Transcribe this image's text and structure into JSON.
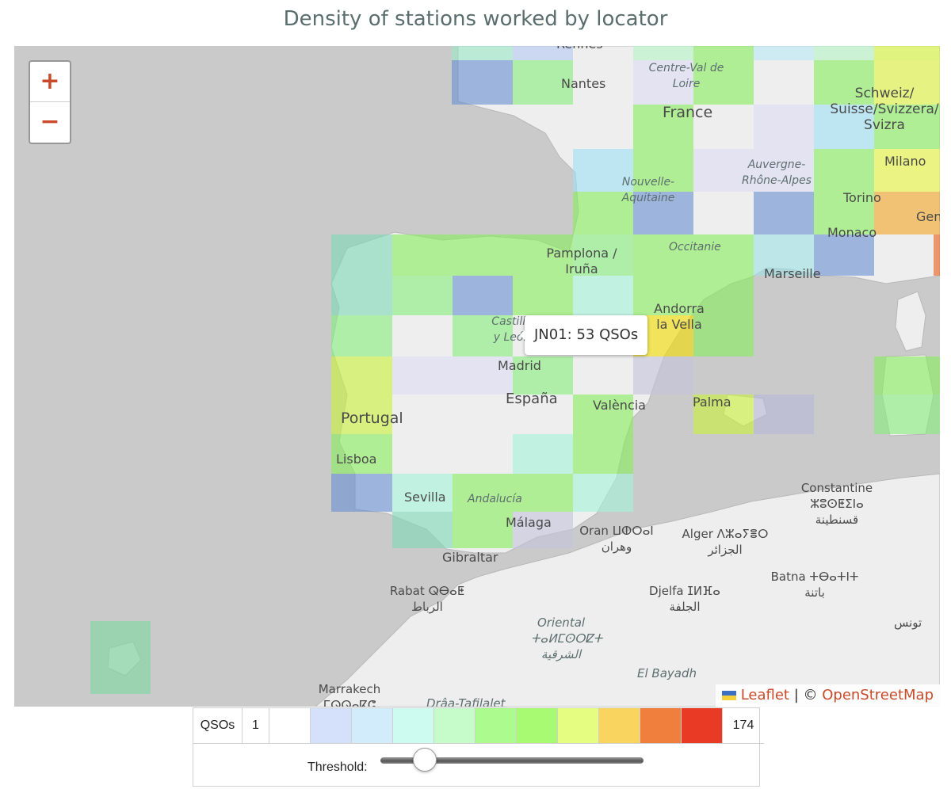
{
  "title": "Density of stations worked by locator",
  "zoom": {
    "in": "+",
    "out": "−"
  },
  "tooltip": "JN01: 53 QSOs",
  "map_labels": [
    "Rennes",
    "Nantes",
    "Centre-Val de Loire",
    "France",
    "Schweiz/ Suisse/Svizzera/ Svizra",
    "Milano",
    "Nouvelle-Aquitaine",
    "Auvergne-Rhône-Alpes",
    "Torino",
    "Genova",
    "Monaco",
    "Pamplona / Iruña",
    "Occitanie",
    "Marseille",
    "Andorra la Vella",
    "Castilla y León",
    "Madrid",
    "España",
    "València",
    "Palma",
    "Portugal",
    "Lisboa",
    "Sevilla",
    "Andalucía",
    "Málaga",
    "Gibraltar",
    "Constantine ⵣⵓⵙⵟⵉⵏⴰ قسنطينة",
    "Oran ⵡⵀⵔⴰⵏ وهران",
    "Alger ⴷⵣⴰⵢⴻⵔ الجزائر",
    "Batna ⵜⴱⴰⵜⵏⵜ باتنة",
    "Rabat ⵕⴱⴰⵟ الرباط",
    "Djelfa ⵊⵍⴼⴰ الجلفة",
    "Oriental ⵜⴰⵍⵎⵙⵔⵇⵜ الشرقية",
    "تونس",
    "El Bayadh",
    "Marrakech ⵎⵕⵕⴰⴽⵛ",
    "Drâa-Tafilalet"
  ],
  "attribution": {
    "leaflet": "Leaflet",
    "separator": " | © ",
    "osm": "OpenStreetMap"
  },
  "legend": {
    "label": "QSOs",
    "min": "1",
    "max": "174",
    "colors": [
      "#ffffff",
      "#d5e1fb",
      "#d3ecfb",
      "#cdfbef",
      "#c5fcca",
      "#acfb8e",
      "#a7fa72",
      "#e5fd81",
      "#f9d45e",
      "#f07e3d",
      "#e93a25"
    ],
    "threshold_label": "Threshold:",
    "threshold_value": 0.17
  },
  "palette": {
    "accent": "#c94a2a",
    "title": "#5a6e6e",
    "water": "#cacaca",
    "land": "#eeeeee"
  }
}
